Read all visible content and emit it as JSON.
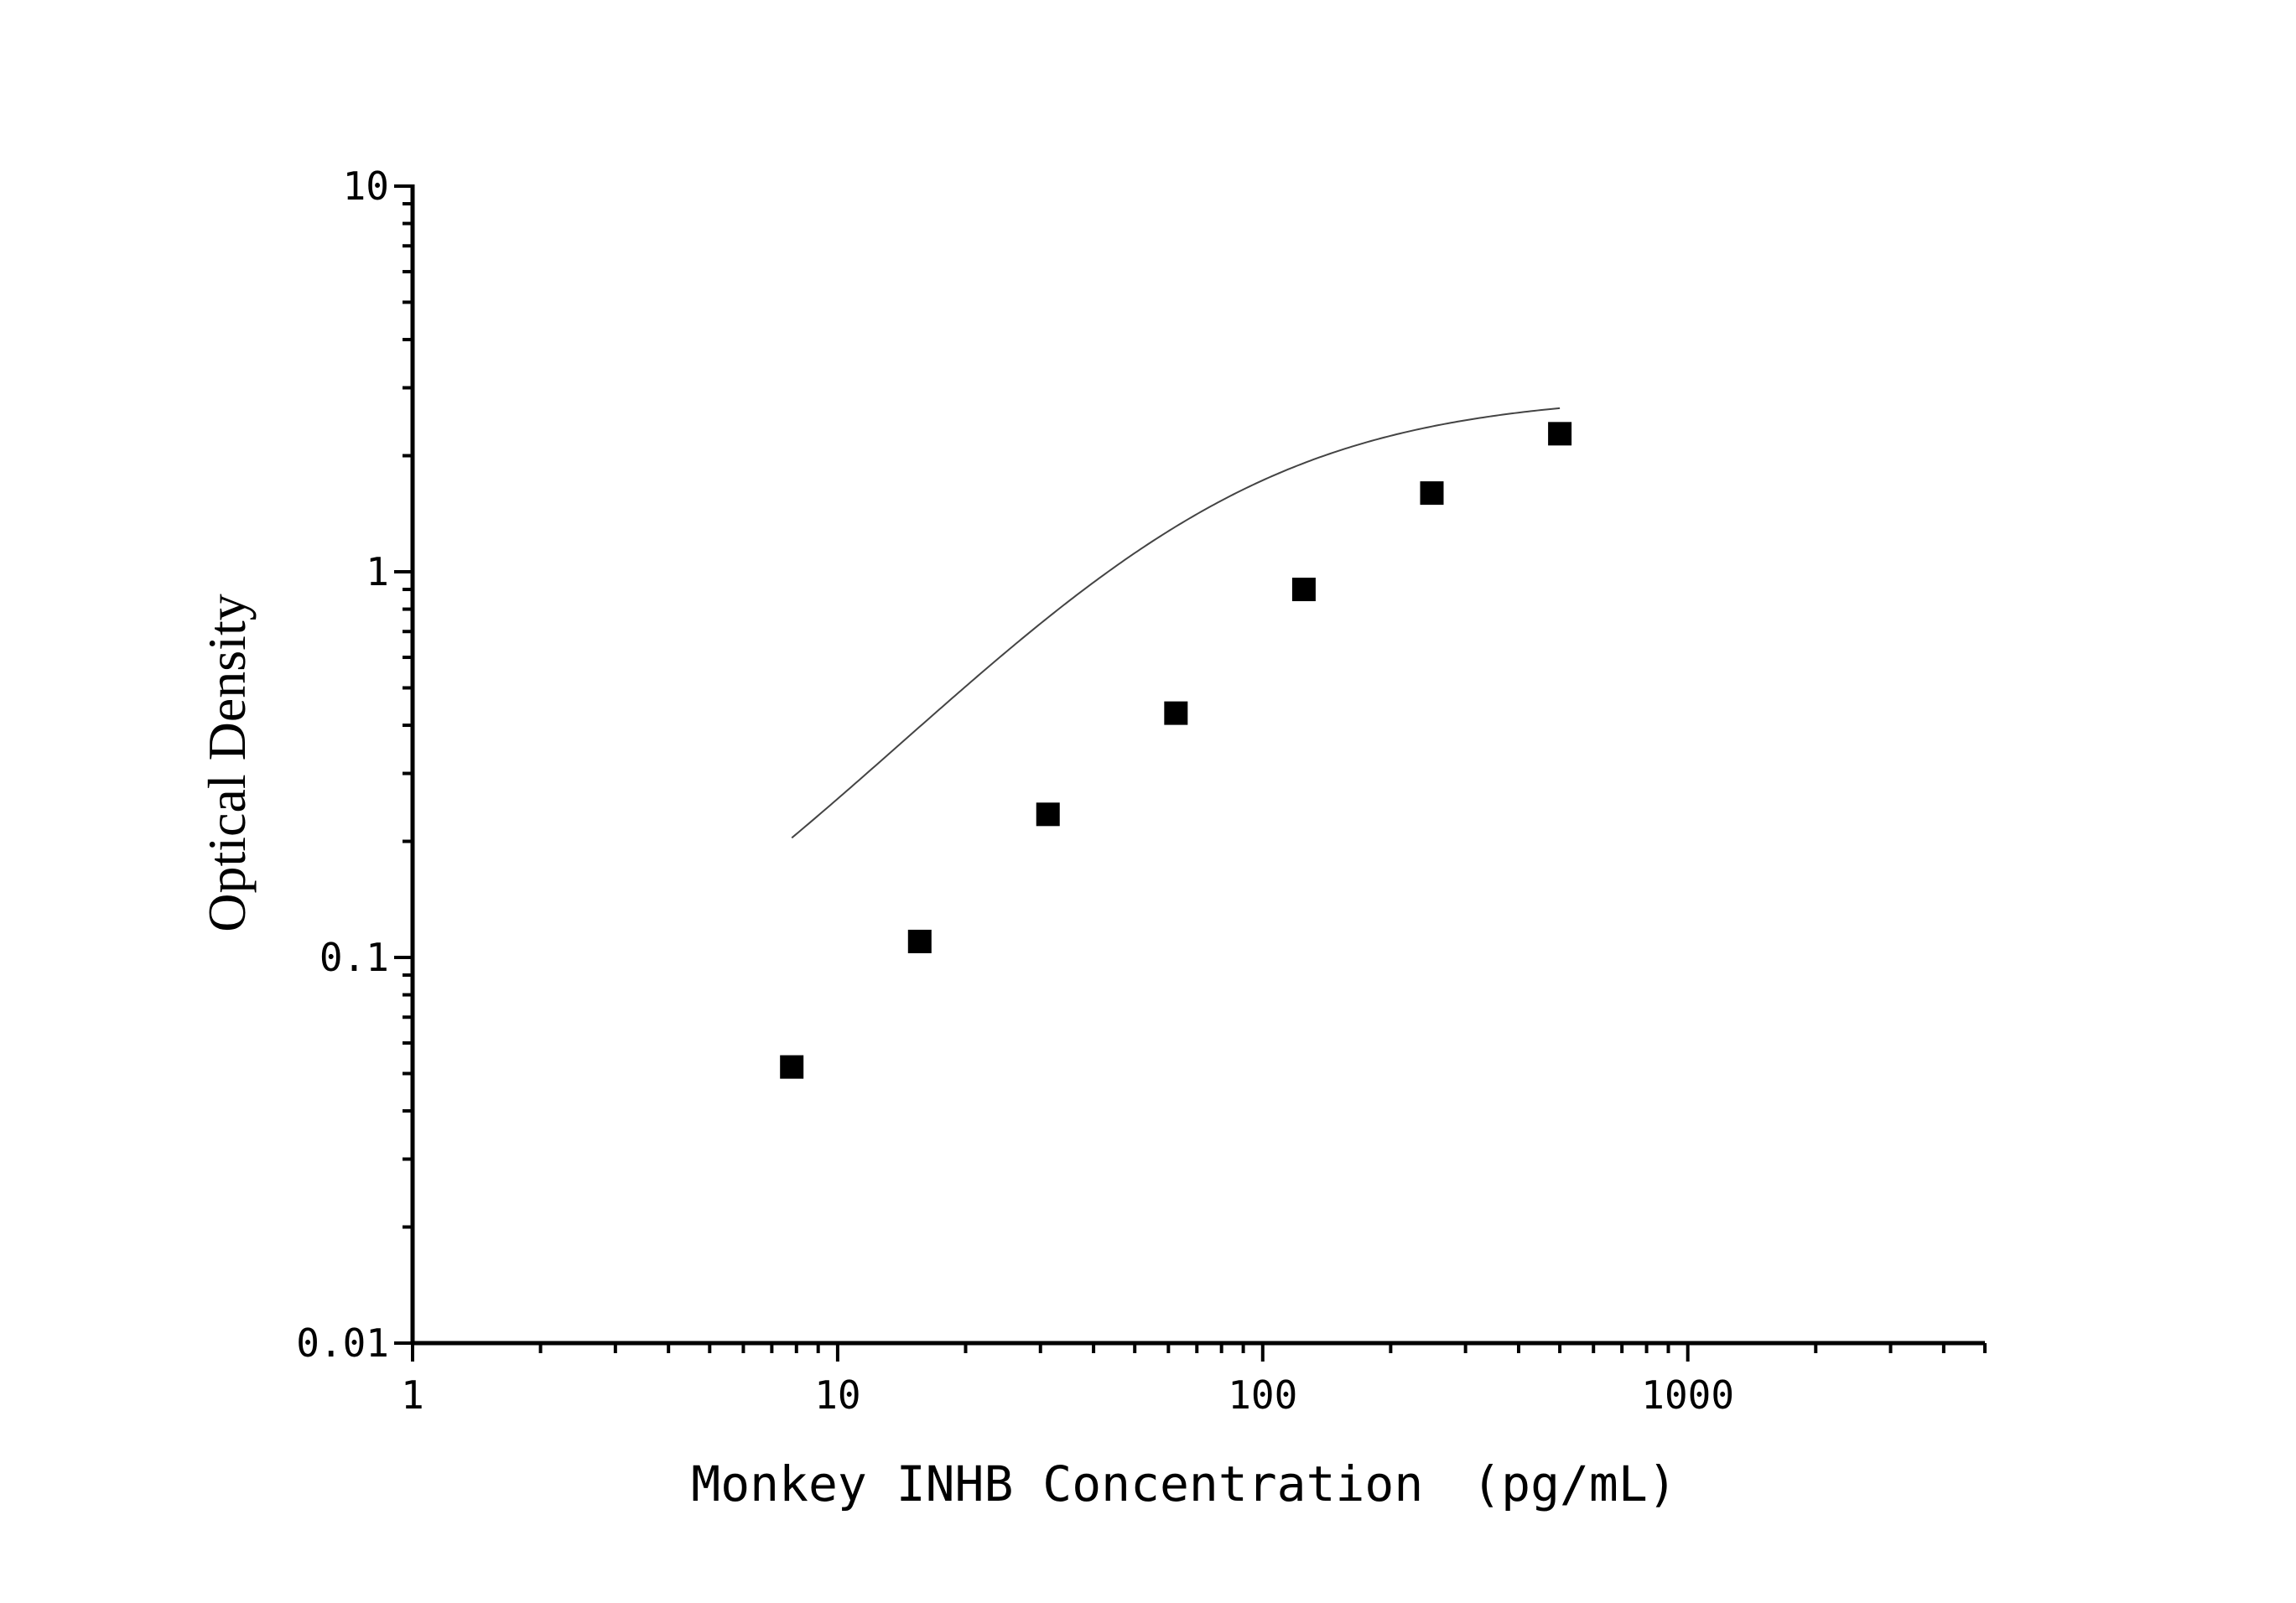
{
  "chart_data": {
    "type": "scatter",
    "title": "",
    "xlabel": "Monkey INHB Concentration　(pg/mL)",
    "ylabel": "Optical Density",
    "x_scale": "log",
    "y_scale": "log",
    "xlim": [
      1,
      5000
    ],
    "ylim": [
      0.01,
      10
    ],
    "x_tick_labels": [
      "1",
      "10",
      "100",
      "1000"
    ],
    "y_tick_labels": [
      "0.01",
      "0.1",
      "1",
      "10"
    ],
    "x_tick_values": [
      1,
      10,
      100,
      1000
    ],
    "y_tick_values": [
      0.01,
      0.1,
      1,
      10
    ],
    "grid": false,
    "legend": "none",
    "marker": "square",
    "color": "#000000",
    "series": [
      {
        "points": [
          {
            "x": 7.8,
            "y": 0.052
          },
          {
            "x": 15.6,
            "y": 0.11
          },
          {
            "x": 31.25,
            "y": 0.235
          },
          {
            "x": 62.5,
            "y": 0.43
          },
          {
            "x": 125,
            "y": 0.9
          },
          {
            "x": 250,
            "y": 1.6
          },
          {
            "x": 500,
            "y": 2.28
          }
        ]
      }
    ],
    "fit_curve": {
      "type": "four-parameter-logistic",
      "x_range": [
        7.8,
        500
      ],
      "params": {
        "A": 0.045,
        "D": 2.9,
        "C": 75,
        "B": 1.25
      }
    }
  }
}
